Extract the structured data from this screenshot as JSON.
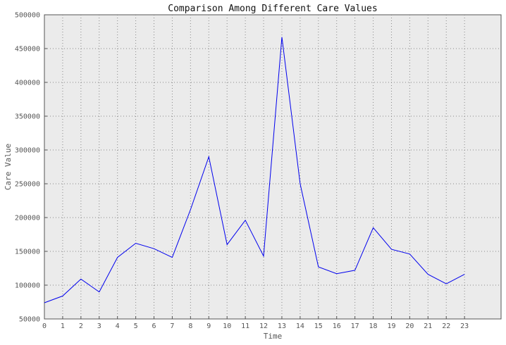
{
  "chart_data": {
    "type": "line",
    "title": "Comparison Among Different Care Values",
    "xlabel": "Time",
    "ylabel": "Care Value",
    "x": [
      0,
      1,
      2,
      3,
      4,
      5,
      6,
      7,
      8,
      9,
      10,
      11,
      12,
      13,
      14,
      15,
      16,
      17,
      18,
      19,
      20,
      21,
      22,
      23
    ],
    "xlim": [
      0,
      25
    ],
    "ylim": [
      50000,
      500000
    ],
    "x_ticks": [
      0,
      1,
      2,
      3,
      4,
      5,
      6,
      7,
      8,
      9,
      10,
      11,
      12,
      13,
      14,
      15,
      16,
      17,
      18,
      19,
      20,
      21,
      22,
      23
    ],
    "y_ticks": [
      50000,
      100000,
      150000,
      200000,
      250000,
      300000,
      350000,
      400000,
      450000,
      500000
    ],
    "grid": true,
    "series": [
      {
        "color": "#0000ee",
        "values": [
          74000,
          84000,
          109000,
          90000,
          141000,
          162000,
          154000,
          141000,
          212000,
          290000,
          160000,
          196000,
          143000,
          467000,
          250000,
          127000,
          117000,
          122000,
          185000,
          153000,
          146000,
          116000,
          102000,
          116000
        ]
      }
    ],
    "colors": {
      "plot_background": "#ebebeb",
      "grid": "#888888",
      "line": "#0000ee"
    }
  }
}
